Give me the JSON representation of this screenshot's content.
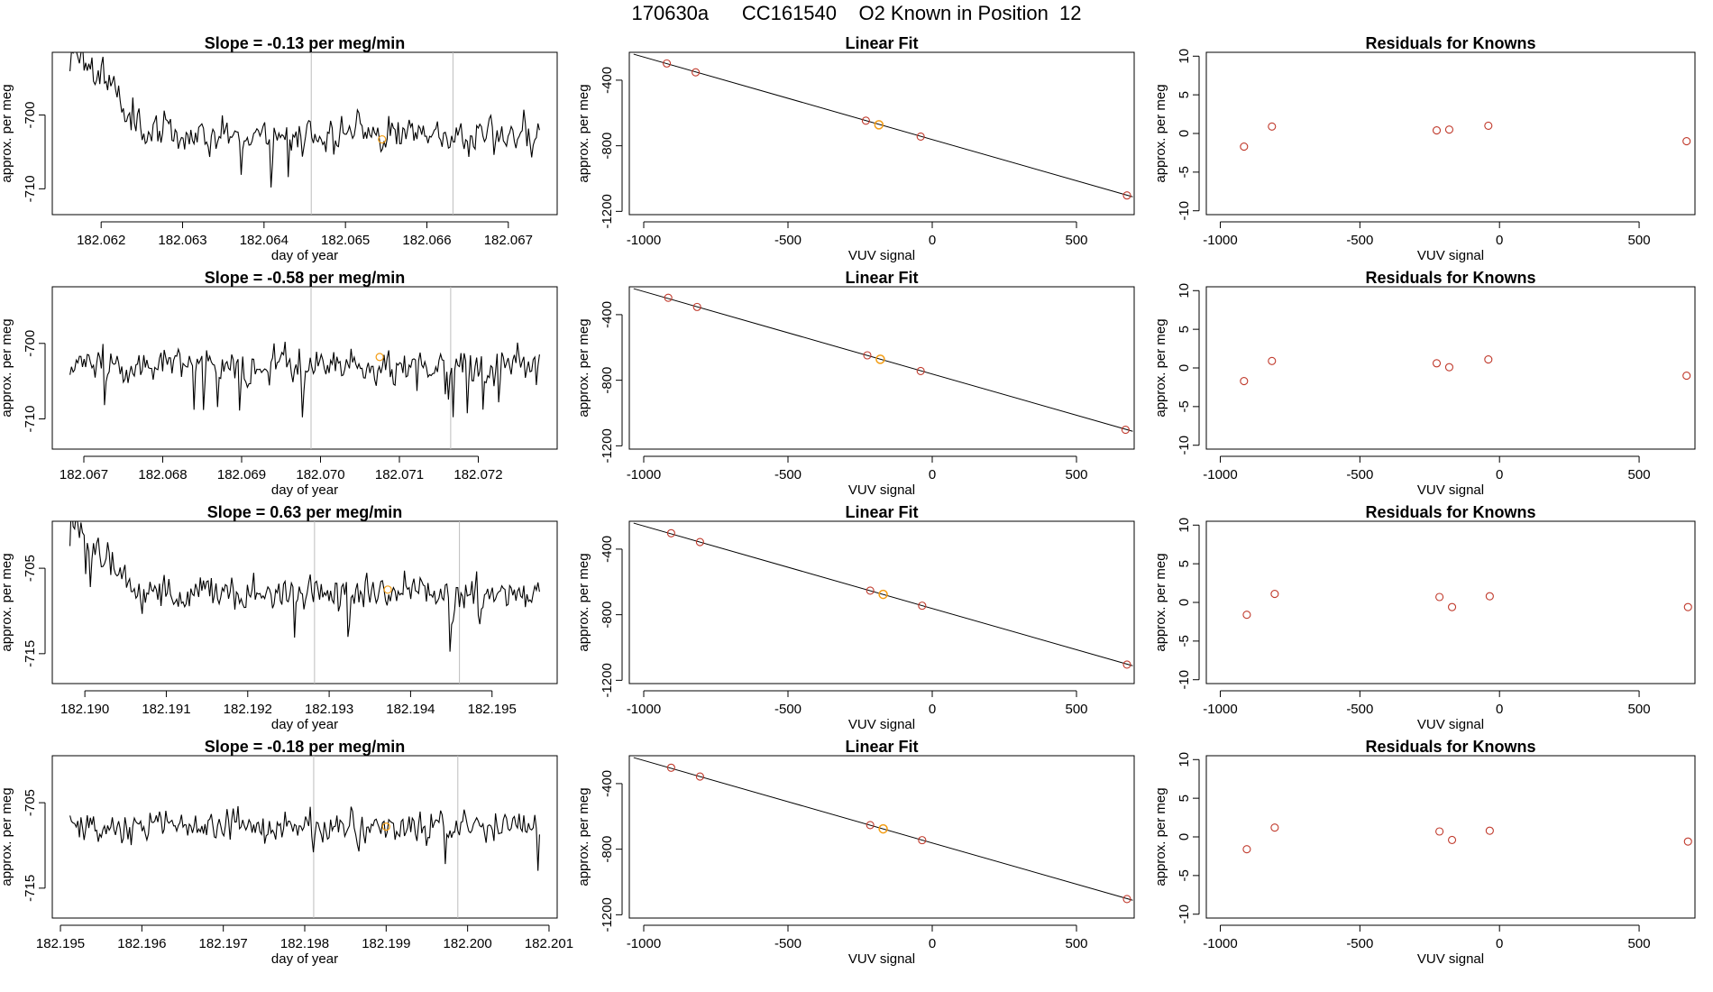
{
  "page": {
    "title": "170630a      CC161540    O2 Known in Position  12"
  },
  "colors": {
    "line": "#000000",
    "known_point": "#c0392b",
    "highlight_point": "#f39c12",
    "vline": "#bdbdbd"
  },
  "rows": [
    {
      "timeseries": {
        "title": "Slope =  -0.13  per meg/min",
        "xlabel": "day of year",
        "ylabel": "approx. per meg",
        "xlim": [
          182.0614,
          182.0676
        ],
        "ylim": [
          -713.5,
          -691.5
        ],
        "xticks": [
          "182.062",
          "182.063",
          "182.064",
          "182.065",
          "182.066",
          "182.067"
        ],
        "yticks": [
          "-700",
          "-710"
        ],
        "vlines": [
          182.06458,
          182.06632
        ],
        "highlight": {
          "x": 182.06545,
          "y": -703.3
        },
        "seed": 11,
        "mean": -702.5,
        "sd": 2.4,
        "y_start": -690.0,
        "settle": 0.17
      },
      "linear_fit": {
        "title": "Linear Fit",
        "xlabel": "VUV signal",
        "ylabel": "approx. per meg",
        "xlim": [
          -1050,
          700
        ],
        "ylim": [
          -1220,
          -230
        ],
        "xticks": [
          "-1000",
          "-500",
          "0",
          "500"
        ],
        "yticks": [
          "-400",
          "-800",
          "-1200"
        ],
        "line": {
          "x0": -1035,
          "x1": 695,
          "slope": -0.503,
          "intercept": -762
        },
        "points": [
          {
            "x": -920,
            "y": -298
          },
          {
            "x": -820,
            "y": -352
          },
          {
            "x": -230,
            "y": -647
          },
          {
            "x": -40,
            "y": -744
          },
          {
            "x": 675,
            "y": -1103
          }
        ],
        "highlight": {
          "x": -185,
          "y": -672
        }
      },
      "residuals": {
        "title": "Residuals for Knowns",
        "xlabel": "VUV signal",
        "ylabel": "approx. per meg",
        "xlim": [
          -1050,
          700
        ],
        "ylim": [
          -10.5,
          10.5
        ],
        "xticks": [
          "-1000",
          "-500",
          "0",
          "500"
        ],
        "yticks": [
          "10",
          "5",
          "0",
          "-5",
          "-10"
        ],
        "points": [
          {
            "x": -915,
            "y": -1.7
          },
          {
            "x": -815,
            "y": 0.9
          },
          {
            "x": -225,
            "y": 0.4
          },
          {
            "x": -180,
            "y": 0.5
          },
          {
            "x": -40,
            "y": 1.0
          },
          {
            "x": 670,
            "y": -1.0
          }
        ]
      }
    },
    {
      "timeseries": {
        "title": "Slope =  -0.58  per meg/min",
        "xlabel": "day of year",
        "ylabel": "approx. per meg",
        "xlim": [
          182.0666,
          182.073
        ],
        "ylim": [
          -714.0,
          -692.5
        ],
        "xticks": [
          "182.067",
          "182.068",
          "182.069",
          "182.070",
          "182.071",
          "182.072"
        ],
        "yticks": [
          "-700",
          "-710"
        ],
        "vlines": [
          182.06988,
          182.07165
        ],
        "highlight": {
          "x": 182.07075,
          "y": -701.8
        },
        "seed": 23,
        "mean": -703.0,
        "sd": 2.3,
        "y_start": -703.5,
        "settle": 0.0
      },
      "linear_fit": {
        "title": "Linear Fit",
        "xlabel": "VUV signal",
        "ylabel": "approx. per meg",
        "xlim": [
          -1050,
          700
        ],
        "ylim": [
          -1220,
          -230
        ],
        "xticks": [
          "-1000",
          "-500",
          "0",
          "500"
        ],
        "yticks": [
          "-400",
          "-800",
          "-1200"
        ],
        "line": {
          "x0": -1035,
          "x1": 695,
          "slope": -0.503,
          "intercept": -762
        },
        "points": [
          {
            "x": -915,
            "y": -297
          },
          {
            "x": -815,
            "y": -353
          },
          {
            "x": -225,
            "y": -648
          },
          {
            "x": -40,
            "y": -744
          },
          {
            "x": 670,
            "y": -1102
          }
        ],
        "highlight": {
          "x": -180,
          "y": -672
        }
      },
      "residuals": {
        "title": "Residuals for Knowns",
        "xlabel": "VUV signal",
        "ylabel": "approx. per meg",
        "xlim": [
          -1050,
          700
        ],
        "ylim": [
          -10.5,
          10.5
        ],
        "xticks": [
          "-1000",
          "-500",
          "0",
          "500"
        ],
        "yticks": [
          "10",
          "5",
          "0",
          "-5",
          "-10"
        ],
        "points": [
          {
            "x": -915,
            "y": -1.7
          },
          {
            "x": -815,
            "y": 0.9
          },
          {
            "x": -225,
            "y": 0.6
          },
          {
            "x": -180,
            "y": 0.1
          },
          {
            "x": -40,
            "y": 1.1
          },
          {
            "x": 670,
            "y": -1.0
          }
        ]
      }
    },
    {
      "timeseries": {
        "title": "Slope =  0.63  per meg/min",
        "xlabel": "day of year",
        "ylabel": "approx. per meg",
        "xlim": [
          182.1896,
          182.1958
        ],
        "ylim": [
          -718.5,
          -699.5
        ],
        "xticks": [
          "182.190",
          "182.191",
          "182.192",
          "182.193",
          "182.194",
          "182.195"
        ],
        "yticks": [
          "-705",
          "-715"
        ],
        "vlines": [
          182.19282,
          182.1946
        ],
        "highlight": {
          "x": 182.19372,
          "y": -707.5
        },
        "seed": 37,
        "mean": -708.0,
        "sd": 2.1,
        "y_start": -698.5,
        "settle": 0.15
      },
      "linear_fit": {
        "title": "Linear Fit",
        "xlabel": "VUV signal",
        "ylabel": "approx. per meg",
        "xlim": [
          -1050,
          700
        ],
        "ylim": [
          -1220,
          -230
        ],
        "xticks": [
          "-1000",
          "-500",
          "0",
          "500"
        ],
        "yticks": [
          "-400",
          "-800",
          "-1200"
        ],
        "line": {
          "x0": -1035,
          "x1": 695,
          "slope": -0.503,
          "intercept": -762
        },
        "points": [
          {
            "x": -905,
            "y": -303
          },
          {
            "x": -805,
            "y": -357
          },
          {
            "x": -215,
            "y": -653
          },
          {
            "x": -35,
            "y": -745
          },
          {
            "x": 675,
            "y": -1104
          }
        ],
        "highlight": {
          "x": -170,
          "y": -676
        }
      },
      "residuals": {
        "title": "Residuals for Knowns",
        "xlabel": "VUV signal",
        "ylabel": "approx. per meg",
        "xlim": [
          -1050,
          700
        ],
        "ylim": [
          -10.5,
          10.5
        ],
        "xticks": [
          "-1000",
          "-500",
          "0",
          "500"
        ],
        "yticks": [
          "10",
          "5",
          "0",
          "-5",
          "-10"
        ],
        "points": [
          {
            "x": -905,
            "y": -1.6
          },
          {
            "x": -805,
            "y": 1.1
          },
          {
            "x": -215,
            "y": 0.7
          },
          {
            "x": -170,
            "y": -0.6
          },
          {
            "x": -35,
            "y": 0.8
          },
          {
            "x": 675,
            "y": -0.6
          }
        ]
      }
    },
    {
      "timeseries": {
        "title": "Slope =  -0.18  per meg/min",
        "xlabel": "day of year",
        "ylabel": "approx. per meg",
        "xlim": [
          182.1949,
          182.2011
        ],
        "ylim": [
          -718.5,
          -699.5
        ],
        "xticks": [
          "182.195",
          "182.196",
          "182.197",
          "182.198",
          "182.199",
          "182.200",
          "182.201"
        ],
        "yticks": [
          "-705",
          "-715"
        ],
        "vlines": [
          182.19811,
          182.19988
        ],
        "highlight": {
          "x": 182.199,
          "y": -707.8
        },
        "seed": 53,
        "mean": -707.8,
        "sd": 2.0,
        "y_start": -705.0,
        "settle": 0.0
      },
      "linear_fit": {
        "title": "Linear Fit",
        "xlabel": "VUV signal",
        "ylabel": "approx. per meg",
        "xlim": [
          -1050,
          700
        ],
        "ylim": [
          -1220,
          -230
        ],
        "xticks": [
          "-1000",
          "-500",
          "0",
          "500"
        ],
        "yticks": [
          "-400",
          "-800",
          "-1200"
        ],
        "line": {
          "x0": -1035,
          "x1": 695,
          "slope": -0.503,
          "intercept": -762
        },
        "points": [
          {
            "x": -905,
            "y": -303
          },
          {
            "x": -805,
            "y": -357
          },
          {
            "x": -215,
            "y": -653
          },
          {
            "x": -35,
            "y": -745
          },
          {
            "x": 675,
            "y": -1104
          }
        ],
        "highlight": {
          "x": -170,
          "y": -676
        }
      },
      "residuals": {
        "title": "Residuals for Knowns",
        "xlabel": "VUV signal",
        "ylabel": "approx. per meg",
        "xlim": [
          -1050,
          700
        ],
        "ylim": [
          -10.5,
          10.5
        ],
        "xticks": [
          "-1000",
          "-500",
          "0",
          "500"
        ],
        "yticks": [
          "10",
          "5",
          "0",
          "-5",
          "-10"
        ],
        "points": [
          {
            "x": -905,
            "y": -1.6
          },
          {
            "x": -805,
            "y": 1.2
          },
          {
            "x": -215,
            "y": 0.7
          },
          {
            "x": -170,
            "y": -0.4
          },
          {
            "x": -35,
            "y": 0.8
          },
          {
            "x": 675,
            "y": -0.6
          }
        ]
      }
    }
  ]
}
